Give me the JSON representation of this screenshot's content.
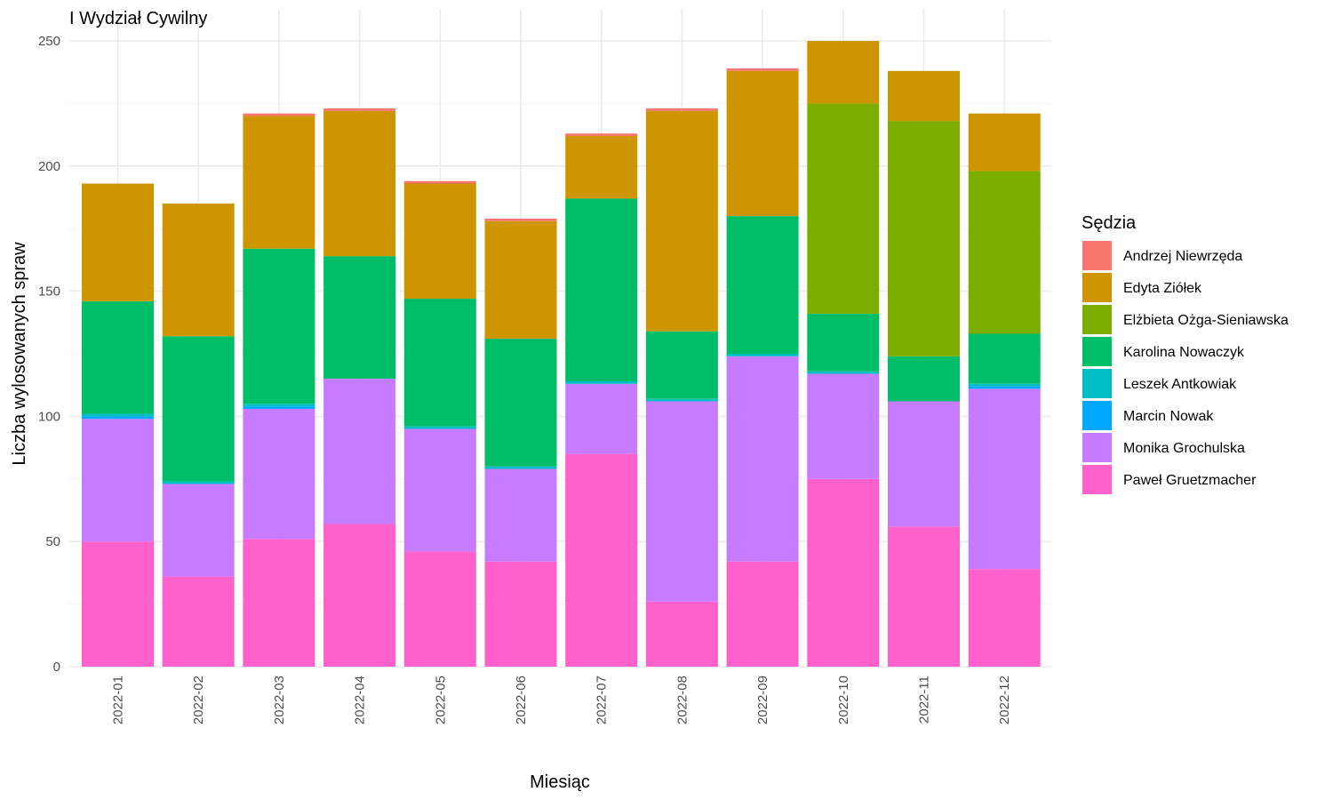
{
  "chart_data": {
    "type": "bar",
    "stacked": true,
    "title": "I Wydział Cywilny",
    "xlabel": "Miesiąc",
    "ylabel": "Liczba wylosowanych spraw",
    "ylim": [
      0,
      250
    ],
    "yticks": [
      0,
      50,
      100,
      150,
      200,
      250
    ],
    "grid": true,
    "legend": {
      "title": "Sędzia",
      "placement": "right"
    },
    "categories": [
      "2022-01",
      "2022-02",
      "2022-03",
      "2022-04",
      "2022-05",
      "2022-06",
      "2022-07",
      "2022-08",
      "2022-09",
      "2022-10",
      "2022-11",
      "2022-12"
    ],
    "series": [
      {
        "name": "Paweł Gruetzmacher",
        "color": "#FF61CC",
        "values": [
          50,
          36,
          51,
          57,
          46,
          42,
          85,
          26,
          42,
          75,
          56,
          39
        ]
      },
      {
        "name": "Monika Grochulska",
        "color": "#C77CFF",
        "values": [
          49,
          37,
          52,
          58,
          49,
          37,
          28,
          80,
          82,
          42,
          50,
          72
        ]
      },
      {
        "name": "Marcin Nowak",
        "color": "#00A9FF",
        "values": [
          1,
          0,
          1,
          0,
          0,
          0,
          0,
          0,
          0,
          0,
          0,
          1
        ]
      },
      {
        "name": "Leszek Antkowiak",
        "color": "#00BFC4",
        "values": [
          1,
          1,
          1,
          0,
          1,
          1,
          1,
          1,
          1,
          1,
          0,
          1
        ]
      },
      {
        "name": "Karolina Nowaczyk",
        "color": "#00BE67",
        "values": [
          45,
          58,
          62,
          49,
          51,
          51,
          73,
          27,
          55,
          23,
          18,
          20
        ]
      },
      {
        "name": "Elżbieta Ożga-Sieniawska",
        "color": "#7CAE00",
        "values": [
          0,
          0,
          0,
          0,
          0,
          0,
          0,
          0,
          0,
          84,
          94,
          65
        ]
      },
      {
        "name": "Edyta Ziółek",
        "color": "#CD9600",
        "values": [
          47,
          53,
          53,
          58,
          46,
          47,
          25,
          88,
          58,
          25,
          20,
          23
        ]
      },
      {
        "name": "Andrzej Niewrzęda",
        "color": "#F8766D",
        "values": [
          0,
          0,
          1,
          1,
          1,
          1,
          1,
          1,
          1,
          0,
          0,
          0
        ]
      }
    ],
    "legend_order": [
      "Andrzej Niewrzęda",
      "Edyta Ziółek",
      "Elżbieta Ożga-Sieniawska",
      "Karolina Nowaczyk",
      "Leszek Antkowiak",
      "Marcin Nowak",
      "Monika Grochulska",
      "Paweł Gruetzmacher"
    ]
  }
}
